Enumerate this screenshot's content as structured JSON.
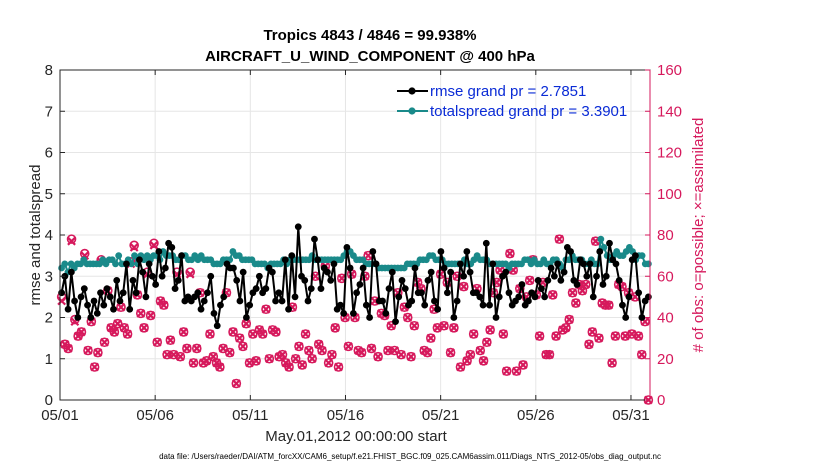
{
  "chart_data": {
    "type": "line",
    "title_line1": "Tropics 4843 / 4846 = 99.938%",
    "title_line2": "AIRCRAFT_U_WIND_COMPONENT @ 400 hPa",
    "xlabel": "May.01,2012 00:00:00 start",
    "ylabel_left": "rmse and totalspread",
    "ylabel_right": "# of obs: o=possible; ×=assimilated",
    "xlim": [
      1,
      32
    ],
    "ylim_left": [
      0,
      8
    ],
    "ylim_right": [
      0,
      160
    ],
    "x_ticks": [
      {
        "value": 1,
        "label": "05/01"
      },
      {
        "value": 6,
        "label": "05/06"
      },
      {
        "value": 11,
        "label": "05/11"
      },
      {
        "value": 16,
        "label": "05/16"
      },
      {
        "value": 21,
        "label": "05/21"
      },
      {
        "value": 26,
        "label": "05/26"
      },
      {
        "value": 31,
        "label": "05/31"
      }
    ],
    "y_ticks_left": [
      "0",
      "1",
      "2",
      "3",
      "4",
      "5",
      "6",
      "7",
      "8"
    ],
    "y_ticks_right": [
      "0",
      "20",
      "40",
      "60",
      "80",
      "100",
      "120",
      "140",
      "160"
    ],
    "grid": true,
    "legend_position": "top-right",
    "colors": {
      "rmse": "#000000",
      "spread": "#1a8a8a",
      "obs": "#d6195c",
      "legend_text": "#0a2bd6",
      "right_axis": "#d6195c"
    },
    "series": [
      {
        "name": "rmse grand pr = 2.7851",
        "axis": "left",
        "values": [
          2.6,
          3.0,
          2.2,
          3.1,
          2.4,
          2.0,
          2.5,
          2.7,
          2.3,
          2.0,
          2.4,
          2.1,
          2.6,
          2.3,
          2.7,
          2.5,
          2.2,
          2.9,
          2.4,
          2.6,
          3.3,
          2.2,
          2.9,
          2.6,
          3.4,
          3.1,
          2.5,
          3.3,
          3.0,
          2.8,
          3.6,
          3.0,
          3.2,
          3.8,
          3.7,
          2.7,
          2.9,
          3.5,
          2.4,
          2.5,
          2.4,
          2.5,
          2.6,
          2.2,
          2.4,
          2.6,
          3.0,
          2.1,
          1.8,
          2.3,
          2.5,
          3.3,
          3.2,
          3.2,
          2.9,
          2.4,
          3.1,
          2.0,
          2.3,
          2.6,
          2.7,
          3.0,
          2.6,
          2.7,
          3.2,
          3.1,
          2.4,
          2.6,
          2.4,
          3.4,
          2.2,
          3.5,
          2.5,
          4.2,
          3.0,
          2.9,
          2.4,
          2.7,
          3.9,
          3.4,
          2.7,
          3.2,
          3.1,
          2.9,
          3.3,
          2.2,
          2.3,
          2.1,
          3.7,
          3.2,
          2.1,
          2.6,
          2.8,
          3.2,
          2.3,
          2.0,
          3.6,
          3.3,
          2.4,
          2.4,
          2.1,
          2.7,
          3.1,
          1.9,
          2.5,
          2.9,
          2.7,
          2.3,
          2.4,
          3.2,
          2.6,
          2.6,
          2.3,
          2.9,
          3.1,
          2.4,
          2.2,
          3.6,
          3.2,
          2.6,
          3.1,
          2.0,
          2.4,
          3.3,
          3.0,
          3.6,
          3.1,
          2.6,
          2.6,
          2.5,
          2.3,
          3.8,
          2.3,
          3.3,
          2.0,
          2.5,
          3.0,
          3.1,
          2.6,
          2.3,
          2.4,
          2.5,
          2.8,
          2.3,
          2.4,
          2.6,
          2.5,
          2.9,
          2.7,
          2.5,
          2.9,
          3.2,
          3.0,
          3.3,
          2.9,
          3.1,
          3.7,
          3.6,
          2.9,
          2.8,
          3.4,
          3.3,
          3.0,
          3.3,
          2.5,
          3.0,
          3.6,
          2.8,
          3.0,
          3.8,
          3.4,
          3.3,
          2.9,
          2.3,
          2.0,
          2.5,
          3.4,
          3.5,
          2.6,
          2.0,
          2.4,
          2.5
        ]
      },
      {
        "name": "totalspread grand pr = 3.3901",
        "axis": "left",
        "values": [
          3.2,
          3.3,
          3.1,
          3.3,
          3.2,
          3.3,
          3.3,
          3.4,
          3.3,
          3.3,
          3.3,
          3.3,
          3.3,
          3.4,
          3.3,
          3.4,
          3.4,
          3.3,
          3.5,
          3.3,
          3.3,
          3.4,
          3.3,
          3.5,
          3.3,
          3.5,
          3.4,
          3.5,
          3.4,
          3.5,
          3.5,
          3.4,
          3.6,
          3.5,
          3.5,
          3.5,
          3.4,
          3.4,
          3.5,
          3.5,
          3.4,
          3.4,
          3.5,
          3.4,
          3.5,
          3.4,
          3.4,
          3.4,
          3.3,
          3.3,
          3.3,
          3.4,
          3.4,
          3.4,
          3.6,
          3.5,
          3.5,
          3.4,
          3.4,
          3.4,
          3.4,
          3.3,
          3.3,
          3.3,
          3.3,
          3.2,
          3.3,
          3.3,
          3.3,
          3.3,
          3.4,
          3.3,
          3.4,
          3.4,
          3.4,
          3.4,
          3.4,
          3.4,
          3.4,
          3.5,
          3.4,
          3.4,
          3.4,
          3.4,
          3.4,
          3.4,
          3.4,
          3.4,
          3.4,
          3.5,
          3.6,
          3.6,
          3.5,
          3.4,
          3.4,
          3.4,
          3.3,
          3.3,
          3.3,
          3.3,
          3.2,
          3.2,
          3.2,
          3.2,
          3.2,
          3.2,
          3.2,
          3.2,
          3.2,
          3.3,
          3.3,
          3.3,
          3.3,
          3.4,
          3.4,
          3.4,
          3.5,
          3.5,
          3.4,
          3.4,
          3.4,
          3.3,
          3.3,
          3.3,
          3.3,
          3.3,
          3.3,
          3.4,
          3.3,
          3.3,
          3.4,
          3.5,
          3.4,
          3.4,
          3.4,
          3.3,
          3.3,
          3.3,
          3.3,
          3.3,
          3.3,
          3.2,
          3.3,
          3.3,
          3.3,
          3.3,
          3.4,
          3.4,
          3.3,
          3.4,
          3.3,
          3.3,
          3.4,
          3.3,
          3.3,
          3.4,
          3.4,
          3.3,
          3.2,
          3.4,
          3.4,
          3.5,
          3.4,
          3.4,
          3.4,
          3.3,
          3.3,
          3.4,
          3.3,
          3.3,
          3.9,
          3.7,
          3.5,
          3.4,
          3.5,
          3.6,
          3.5,
          3.5,
          3.6,
          3.7,
          3.6,
          3.4,
          3.5,
          3.5,
          3.3,
          3.3
        ]
      },
      {
        "name": "obs possible",
        "axis": "right",
        "values": [
          50,
          27,
          25,
          78,
          39,
          31,
          33,
          71,
          24,
          38,
          16,
          23,
          68,
          28,
          53,
          35,
          33,
          37,
          45,
          35,
          32,
          67,
          75,
          51,
          42,
          35,
          62,
          41,
          76,
          28,
          48,
          46,
          22,
          29,
          22,
          62,
          21,
          33,
          25,
          62,
          18,
          25,
          52,
          18,
          19,
          32,
          21,
          18,
          16,
          25,
          52,
          23,
          33,
          8,
          30,
          26,
          37,
          18,
          32,
          19,
          34,
          32,
          44,
          20,
          34,
          33,
          21,
          22,
          18,
          16,
          45,
          20,
          26,
          17,
          32,
          24,
          20,
          60,
          27,
          24,
          65,
          18,
          22,
          35,
          16,
          59,
          40,
          26,
          61,
          40,
          24,
          23,
          60,
          70,
          25,
          48,
          21,
          42,
          41,
          24,
          36,
          24,
          52,
          22,
          45,
          40,
          21,
          36,
          57,
          54,
          24,
          23,
          30,
          44,
          35,
          61,
          36,
          57,
          23,
          35,
          60,
          16,
          55,
          19,
          22,
          32,
          54,
          24,
          19,
          28,
          34,
          52,
          57,
          63,
          32,
          14,
          71,
          63,
          14,
          54,
          17,
          50,
          58,
          68,
          51,
          31,
          57,
          22,
          22,
          51,
          31,
          78,
          34,
          35,
          39,
          52,
          47,
          56,
          53,
          56,
          27,
          33,
          77,
          30,
          47,
          46,
          46,
          18,
          31,
          56,
          55,
          31,
          52,
          32,
          50,
          31,
          22,
          38,
          0
        ]
      },
      {
        "name": "obs assimilated",
        "axis": "right",
        "values": [
          48,
          27,
          25,
          77,
          38,
          31,
          33,
          70,
          24,
          38,
          16,
          23,
          67,
          28,
          53,
          35,
          33,
          37,
          45,
          35,
          32,
          66,
          74,
          51,
          42,
          35,
          61,
          41,
          75,
          28,
          48,
          46,
          22,
          29,
          22,
          61,
          21,
          33,
          25,
          61,
          18,
          25,
          52,
          18,
          19,
          32,
          21,
          18,
          16,
          25,
          52,
          23,
          33,
          8,
          30,
          26,
          37,
          18,
          32,
          19,
          34,
          32,
          44,
          20,
          34,
          33,
          21,
          22,
          18,
          16,
          45,
          20,
          26,
          17,
          32,
          24,
          20,
          60,
          27,
          24,
          65,
          18,
          22,
          35,
          16,
          59,
          40,
          26,
          61,
          40,
          24,
          23,
          60,
          70,
          25,
          48,
          21,
          42,
          41,
          24,
          36,
          24,
          52,
          22,
          45,
          40,
          21,
          36,
          57,
          54,
          24,
          23,
          30,
          44,
          35,
          61,
          36,
          57,
          23,
          35,
          60,
          16,
          55,
          19,
          22,
          32,
          54,
          24,
          19,
          28,
          34,
          52,
          57,
          63,
          32,
          14,
          71,
          63,
          14,
          54,
          17,
          50,
          58,
          68,
          51,
          31,
          57,
          22,
          22,
          51,
          31,
          78,
          34,
          35,
          39,
          52,
          47,
          56,
          53,
          56,
          27,
          33,
          77,
          30,
          47,
          46,
          46,
          18,
          31,
          56,
          55,
          31,
          52,
          32,
          50,
          31,
          22,
          38,
          0
        ]
      }
    ],
    "legend_labels": [
      "rmse grand pr = 2.7851",
      "totalspread grand pr = 3.3901"
    ],
    "footer_text": "data file: /Users/raeder/DAI/ATM_forcXX/CAM6_setup/f.e21.FHIST_BGC.f09_025.CAM6assim.011/Diags_NTrS_2012-05/obs_diag_output.nc"
  }
}
